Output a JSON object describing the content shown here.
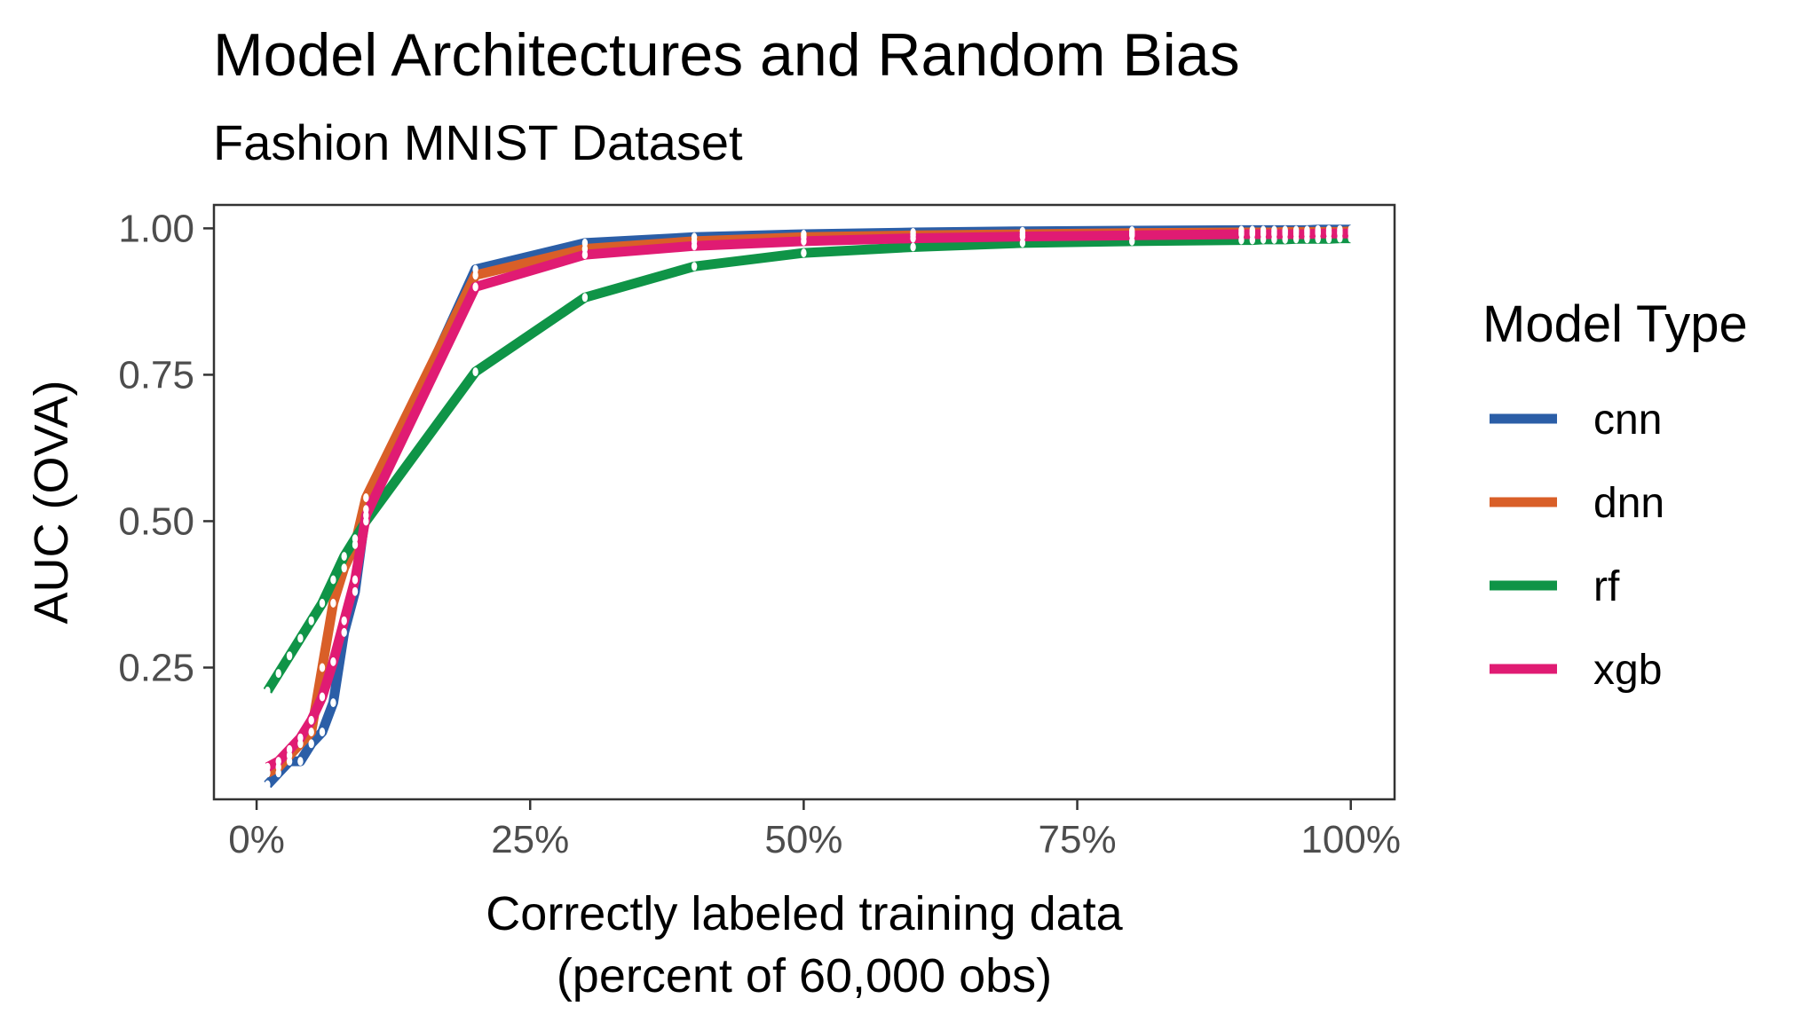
{
  "chart_data": {
    "type": "line",
    "title": "Model Architectures and Random Bias",
    "subtitle": "Fashion MNIST Dataset",
    "xlabel_line1": "Correctly labeled training data",
    "xlabel_line2": "(percent of 60,000 obs)",
    "ylabel": "AUC (OVA)",
    "xlim": [
      -3.9,
      104
    ],
    "ylim": [
      0.025,
      1.04
    ],
    "x_ticks": [
      0,
      25,
      50,
      75,
      100
    ],
    "x_tick_labels": [
      "0%",
      "25%",
      "50%",
      "75%",
      "100%"
    ],
    "y_ticks": [
      0.25,
      0.5,
      0.75,
      1.0
    ],
    "y_tick_labels": [
      "0.25",
      "0.50",
      "0.75",
      "1.00"
    ],
    "grid": false,
    "legend_title": "Model Type",
    "legend_position": "right",
    "x": [
      1,
      2,
      3,
      4,
      5,
      6,
      7,
      8,
      9,
      10,
      20,
      30,
      40,
      50,
      60,
      70,
      80,
      90,
      91,
      92,
      93,
      94,
      95,
      96,
      97,
      98,
      99,
      100
    ],
    "series": [
      {
        "name": "cnn",
        "color": "#2b5ea7",
        "values": [
          0.05,
          0.07,
          0.09,
          0.09,
          0.12,
          0.14,
          0.19,
          0.31,
          0.38,
          0.52,
          0.93,
          0.975,
          0.985,
          0.99,
          0.993,
          0.995,
          0.996,
          0.997,
          0.997,
          0.997,
          0.997,
          0.997,
          0.997,
          0.997,
          0.998,
          0.998,
          0.998,
          0.998
        ]
      },
      {
        "name": "dnn",
        "color": "#d95f28",
        "values": [
          0.07,
          0.08,
          0.1,
          0.12,
          0.14,
          0.25,
          0.36,
          0.42,
          0.46,
          0.54,
          0.92,
          0.965,
          0.978,
          0.985,
          0.988,
          0.99,
          0.992,
          0.993,
          0.993,
          0.993,
          0.993,
          0.994,
          0.994,
          0.994,
          0.994,
          0.994,
          0.994,
          0.995
        ]
      },
      {
        "name": "rf",
        "color": "#0f9447",
        "values": [
          0.21,
          0.24,
          0.27,
          0.3,
          0.33,
          0.36,
          0.4,
          0.44,
          0.47,
          0.5,
          0.755,
          0.882,
          0.935,
          0.958,
          0.968,
          0.975,
          0.978,
          0.98,
          0.98,
          0.981,
          0.981,
          0.981,
          0.982,
          0.982,
          0.982,
          0.982,
          0.983,
          0.983
        ]
      },
      {
        "name": "xgb",
        "color": "#e01b73",
        "values": [
          0.08,
          0.09,
          0.11,
          0.13,
          0.16,
          0.2,
          0.26,
          0.33,
          0.4,
          0.51,
          0.9,
          0.955,
          0.97,
          0.978,
          0.983,
          0.986,
          0.988,
          0.99,
          0.99,
          0.99,
          0.99,
          0.99,
          0.99,
          0.99,
          0.991,
          0.991,
          0.991,
          0.991
        ]
      }
    ]
  }
}
